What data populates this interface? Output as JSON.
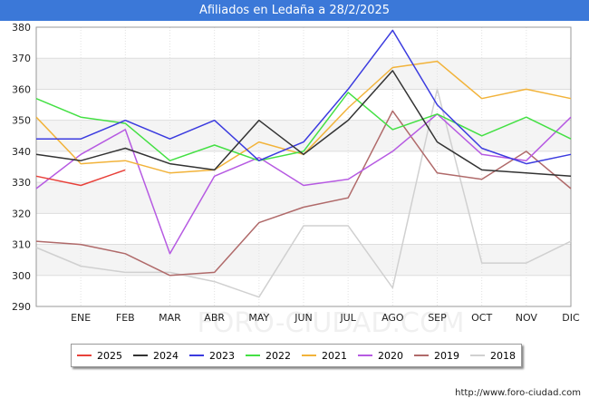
{
  "title": "Afiliados en Ledaña a 28/2/2025",
  "source": "http://www.foro-ciudad.com",
  "watermark": "FORO-CIUDAD.COM",
  "chart_data": {
    "type": "line",
    "categories": [
      "",
      "ENE",
      "FEB",
      "MAR",
      "ABR",
      "MAY",
      "JUN",
      "JUL",
      "AGO",
      "SEP",
      "OCT",
      "NOV",
      "DIC"
    ],
    "ylim": [
      290,
      380
    ],
    "yticks": [
      290,
      300,
      310,
      320,
      330,
      340,
      350,
      360,
      370,
      380
    ],
    "grid": true,
    "legend_position": "bottom",
    "series": [
      {
        "name": "2025",
        "color": "#e8413a",
        "values": [
          332,
          329,
          334,
          null,
          null,
          null,
          null,
          null,
          null,
          null,
          null,
          null,
          null
        ]
      },
      {
        "name": "2024",
        "color": "#333333",
        "values": [
          339,
          337,
          341,
          336,
          334,
          350,
          339,
          350,
          366,
          343,
          334,
          333,
          332
        ]
      },
      {
        "name": "2023",
        "color": "#3b3bdf",
        "values": [
          344,
          344,
          350,
          344,
          350,
          337,
          343,
          360,
          379,
          355,
          341,
          336,
          339
        ]
      },
      {
        "name": "2022",
        "color": "#44e044",
        "values": [
          357,
          351,
          349,
          337,
          342,
          337,
          340,
          359,
          347,
          352,
          345,
          351,
          344
        ]
      },
      {
        "name": "2021",
        "color": "#f2b33a",
        "values": [
          351,
          336,
          337,
          333,
          334,
          343,
          339,
          354,
          367,
          369,
          357,
          360,
          357
        ]
      },
      {
        "name": "2020",
        "color": "#b65ae2",
        "values": [
          328,
          339,
          347,
          307,
          332,
          338,
          329,
          331,
          340,
          352,
          339,
          337,
          351
        ]
      },
      {
        "name": "2019",
        "color": "#b06a6a",
        "values": [
          311,
          310,
          307,
          300,
          301,
          317,
          322,
          325,
          353,
          333,
          331,
          340,
          328
        ]
      },
      {
        "name": "2018",
        "color": "#d0d0d0",
        "values": [
          309,
          303,
          301,
          301,
          298,
          293,
          316,
          316,
          296,
          360,
          304,
          304,
          311
        ]
      }
    ]
  }
}
